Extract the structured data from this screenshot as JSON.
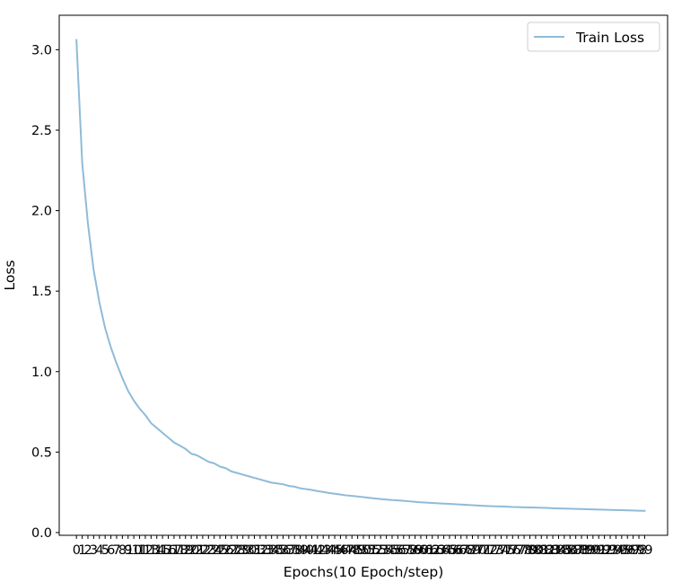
{
  "chart_data": {
    "type": "line",
    "title": "",
    "xlabel": "Epochs(10 Epoch/step)",
    "ylabel": "Loss",
    "xlim": [
      -3.0,
      103.0
    ],
    "ylim": [
      -0.017,
      3.214
    ],
    "yticks": [
      0.0,
      0.5,
      1.0,
      1.5,
      2.0,
      2.5,
      3.0
    ],
    "ytick_labels": [
      "0.0",
      "0.5",
      "1.0",
      "1.5",
      "2.0",
      "2.5",
      "3.0"
    ],
    "grid": false,
    "legend_position": "upper right",
    "x": [
      0,
      1,
      2,
      3,
      4,
      5,
      6,
      7,
      8,
      9,
      10,
      11,
      12,
      13,
      14,
      15,
      16,
      17,
      18,
      19,
      20,
      21,
      22,
      23,
      24,
      25,
      26,
      27,
      28,
      29,
      30,
      31,
      32,
      33,
      34,
      35,
      36,
      37,
      38,
      39,
      40,
      41,
      42,
      43,
      44,
      45,
      46,
      47,
      48,
      49,
      50,
      51,
      52,
      53,
      54,
      55,
      56,
      57,
      58,
      59,
      60,
      61,
      62,
      63,
      64,
      65,
      66,
      67,
      68,
      69,
      70,
      71,
      72,
      73,
      74,
      75,
      76,
      77,
      78,
      79,
      80,
      81,
      82,
      83,
      84,
      85,
      86,
      87,
      88,
      89,
      90,
      91,
      92,
      93,
      94,
      95,
      96,
      97,
      98,
      99
    ],
    "series": [
      {
        "name": "Train Loss",
        "color": "#1f77b4",
        "alpha": 0.5,
        "values": [
          3.06,
          2.3,
          1.92,
          1.63,
          1.43,
          1.27,
          1.15,
          1.05,
          0.96,
          0.88,
          0.82,
          0.77,
          0.73,
          0.68,
          0.65,
          0.62,
          0.59,
          0.56,
          0.54,
          0.52,
          0.49,
          0.48,
          0.46,
          0.44,
          0.43,
          0.41,
          0.4,
          0.38,
          0.37,
          0.36,
          0.35,
          0.34,
          0.33,
          0.32,
          0.31,
          0.305,
          0.3,
          0.29,
          0.285,
          0.275,
          0.27,
          0.265,
          0.258,
          0.252,
          0.246,
          0.241,
          0.236,
          0.231,
          0.228,
          0.224,
          0.22,
          0.216,
          0.212,
          0.208,
          0.205,
          0.202,
          0.2,
          0.197,
          0.194,
          0.191,
          0.188,
          0.186,
          0.184,
          0.182,
          0.18,
          0.178,
          0.176,
          0.174,
          0.172,
          0.17,
          0.168,
          0.166,
          0.164,
          0.163,
          0.162,
          0.161,
          0.159,
          0.158,
          0.157,
          0.156,
          0.155,
          0.154,
          0.153,
          0.151,
          0.15,
          0.149,
          0.148,
          0.147,
          0.146,
          0.145,
          0.144,
          0.143,
          0.142,
          0.141,
          0.14,
          0.139,
          0.138,
          0.137,
          0.136,
          0.135
        ]
      }
    ]
  }
}
